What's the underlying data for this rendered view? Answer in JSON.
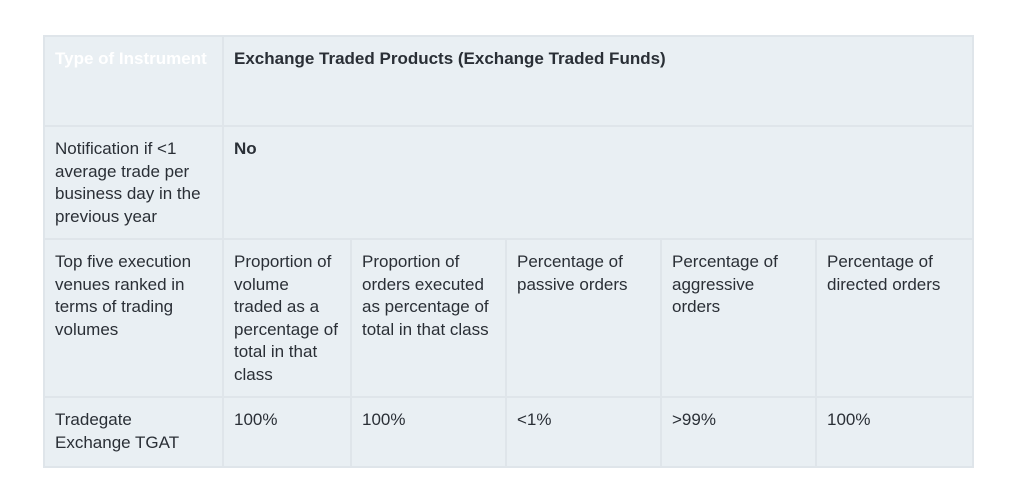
{
  "table": {
    "type_label": "Type of Instrument",
    "type_value": "Exchange Traded Products (Exchange Traded Funds)",
    "notification_label": "Notification if <1 average trade per business day in the previous year",
    "notification_value": "No",
    "venues_label": "Top five execution venues ranked in terms of trading volumes",
    "columns": [
      "Proportion of volume traded as a percentage of total in that class",
      "Proportion of orders executed as percentage of total in that class",
      "Percentage of passive orders",
      "Percentage of aggressive orders",
      "Percentage of directed orders"
    ],
    "rows": [
      {
        "venue": "Tradegate Exchange TGAT",
        "values": [
          "100%",
          "100%",
          "<1%",
          ">99%",
          "100%"
        ]
      }
    ]
  }
}
